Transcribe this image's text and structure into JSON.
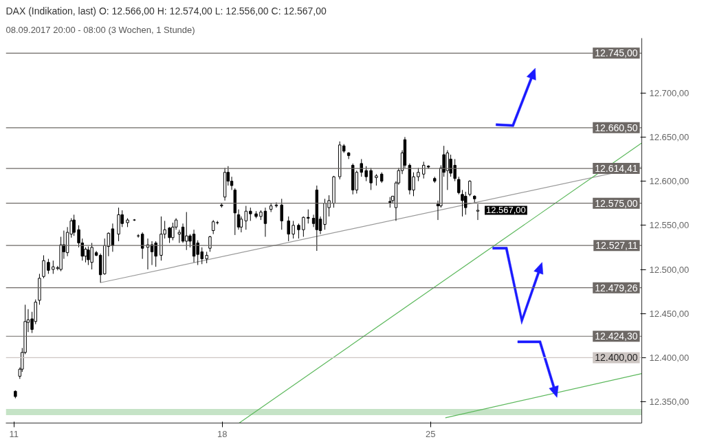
{
  "chart_data": {
    "type": "candlestick",
    "title": "DAX (Indikation, last)  O: 12.566,00  H: 12.574,00  L: 12.556,00  C: 12.567,00",
    "subtitle": "08.09.2017 20:00 - 08:00   (3 Wochen, 1 Stunde)",
    "x": [
      11.05,
      11.2,
      11.28,
      11.38,
      11.48,
      11.61,
      11.73,
      11.86,
      12.0,
      12.16,
      12.32,
      12.47,
      12.58,
      12.68,
      12.8,
      12.93,
      13.02,
      13.18,
      13.3,
      13.41,
      13.5,
      13.62,
      13.77,
      13.91,
      14.05,
      14.18,
      14.32,
      14.52,
      14.64,
      14.82,
      15.05,
      15.18,
      15.32,
      15.5,
      15.64,
      15.77,
      15.95,
      16.07,
      16.23,
      16.34,
      16.45,
      16.56,
      16.68,
      16.8,
      16.92,
      17.05,
      17.18,
      17.32,
      17.48,
      17.59,
      17.7,
      17.84,
      17.98,
      18.09,
      18.2,
      18.32,
      18.43,
      18.55,
      18.64,
      18.8,
      18.95,
      19.14,
      19.3,
      19.45,
      19.64,
      19.82,
      20.0,
      20.23,
      20.39,
      20.57,
      20.73,
      20.89,
      21.07,
      21.18,
      21.3,
      21.45,
      21.59,
      21.75,
      21.95,
      22.09,
      22.25,
      22.39,
      22.52,
      22.68,
      22.84,
      23.0,
      23.18,
      23.36,
      23.64,
      23.73,
      23.84,
      23.93,
      24.05,
      24.14,
      24.3,
      24.43,
      24.59,
      24.77,
      24.93,
      25.14,
      25.25,
      25.35,
      25.45,
      25.57,
      25.68,
      25.82,
      25.95,
      26.07,
      26.18,
      26.32,
      26.48,
      26.59
    ],
    "ohlc": [
      [
        12362,
        12363,
        12354,
        12356
      ],
      [
        12379,
        12389,
        12376,
        12387
      ],
      [
        12387,
        12411,
        12384,
        12406
      ],
      [
        12406,
        12460,
        12404,
        12441
      ],
      [
        12440,
        12455,
        12429,
        12443
      ],
      [
        12444,
        12452,
        12428,
        12432
      ],
      [
        12441,
        12466,
        12438,
        12463
      ],
      [
        12465,
        12495,
        12460,
        12490
      ],
      [
        12492,
        12516,
        12490,
        12510
      ],
      [
        12508,
        12512,
        12495,
        12499
      ],
      [
        12500,
        12510,
        12495,
        12503
      ],
      [
        12501,
        12504,
        12499,
        12502
      ],
      [
        12500,
        12537,
        12498,
        12528
      ],
      [
        12528,
        12544,
        12512,
        12520
      ],
      [
        12519,
        12548,
        12515,
        12542
      ],
      [
        12540,
        12558,
        12536,
        12555
      ],
      [
        12556,
        12562,
        12538,
        12542
      ],
      [
        12545,
        12550,
        12525,
        12530
      ],
      [
        12530,
        12535,
        12510,
        12515
      ],
      [
        12515,
        12525,
        12508,
        12523
      ],
      [
        12522,
        12526,
        12505,
        12511
      ],
      [
        12508,
        12530,
        12500,
        12525
      ],
      [
        12519,
        12521,
        12515,
        12516
      ],
      [
        12516,
        12518,
        12485,
        12494
      ],
      [
        12495,
        12535,
        12494,
        12527
      ],
      [
        12526,
        12542,
        12515,
        12541
      ],
      [
        12546,
        12552,
        12520,
        12527
      ],
      [
        12540,
        12570,
        12532,
        12562
      ],
      [
        12562,
        12567,
        12548,
        12552
      ],
      [
        12553,
        12558,
        12548,
        12556
      ],
      [
        12556,
        12557,
        12555,
        12556
      ],
      [
        12538,
        12540,
        12536,
        12538
      ],
      [
        12540,
        12542,
        12512,
        12524
      ],
      [
        12525,
        12535,
        12500,
        12528
      ],
      [
        12528,
        12532,
        12505,
        12520
      ],
      [
        12530,
        12532,
        12503,
        12515
      ],
      [
        12516,
        12560,
        12510,
        12540
      ],
      [
        12540,
        12555,
        12535,
        12545
      ],
      [
        12547,
        12548,
        12530,
        12536
      ],
      [
        12536,
        12553,
        12533,
        12548
      ],
      [
        12548,
        12558,
        12545,
        12556
      ],
      [
        12540,
        12545,
        12530,
        12542
      ],
      [
        12548,
        12552,
        12530,
        12532
      ],
      [
        12532,
        12565,
        12522,
        12538
      ],
      [
        12538,
        12540,
        12525,
        12532
      ],
      [
        12540,
        12545,
        12508,
        12515
      ],
      [
        12530,
        12533,
        12505,
        12517
      ],
      [
        12520,
        12525,
        12506,
        12512
      ],
      [
        12512,
        12520,
        12507,
        12516
      ],
      [
        12524,
        12538,
        12520,
        12537
      ],
      [
        12544,
        12556,
        12540,
        12554
      ],
      [
        12553,
        12555,
        12551,
        12553
      ],
      [
        12572,
        12575,
        12570,
        12573
      ],
      [
        12582,
        12615,
        12578,
        12610
      ],
      [
        12610,
        12617,
        12595,
        12600
      ],
      [
        12600,
        12605,
        12590,
        12595
      ],
      [
        12590,
        12592,
        12539,
        12564
      ],
      [
        12562,
        12568,
        12545,
        12548
      ],
      [
        12548,
        12560,
        12542,
        12557
      ],
      [
        12555,
        12572,
        12545,
        12566
      ],
      [
        12566,
        12570,
        12555,
        12563
      ],
      [
        12563,
        12566,
        12558,
        12560
      ],
      [
        12560,
        12567,
        12556,
        12565
      ],
      [
        12566,
        12570,
        12537,
        12552
      ],
      [
        12568,
        12575,
        12565,
        12572
      ],
      [
        12572,
        12576,
        12570,
        12573
      ],
      [
        12573,
        12580,
        12545,
        12555
      ],
      [
        12555,
        12560,
        12532,
        12540
      ],
      [
        12540,
        12555,
        12535,
        12550
      ],
      [
        12550,
        12552,
        12535,
        12545
      ],
      [
        12545,
        12560,
        12537,
        12559
      ],
      [
        12559,
        12568,
        12552,
        12558
      ],
      [
        12558,
        12562,
        12548,
        12552
      ],
      [
        12590,
        12595,
        12521,
        12545
      ],
      [
        12557,
        12560,
        12540,
        12544
      ],
      [
        12551,
        12580,
        12545,
        12575
      ],
      [
        12570,
        12584,
        12560,
        12578
      ],
      [
        12575,
        12606,
        12570,
        12605
      ],
      [
        12605,
        12645,
        12602,
        12641
      ],
      [
        12640,
        12642,
        12632,
        12634
      ],
      [
        12632,
        12633,
        12625,
        12629
      ],
      [
        12618,
        12620,
        12585,
        12590
      ],
      [
        12590,
        12612,
        12586,
        12610
      ],
      [
        12620,
        12625,
        12605,
        12610
      ],
      [
        12612,
        12617,
        12600,
        12605
      ],
      [
        12612,
        12615,
        12590,
        12598
      ],
      [
        12604,
        12608,
        12595,
        12606
      ],
      [
        12608,
        12610,
        12598,
        12600
      ],
      [
        12577,
        12582,
        12570,
        12576
      ],
      [
        12578,
        12583,
        12575,
        12583
      ],
      [
        12570,
        12600,
        12555,
        12598
      ],
      [
        12598,
        12615,
        12596,
        12612
      ],
      [
        12612,
        12635,
        12608,
        12632
      ],
      [
        12647,
        12650,
        12615,
        12618
      ],
      [
        12618,
        12620,
        12585,
        12590
      ],
      [
        12590,
        12610,
        12583,
        12605
      ],
      [
        12605,
        12615,
        12600,
        12610
      ],
      [
        12608,
        12622,
        12603,
        12618
      ],
      [
        12617,
        12618,
        12614,
        12616
      ],
      [
        12603,
        12605,
        12598,
        12600
      ],
      [
        12574,
        12578,
        12556,
        12572
      ],
      [
        12572,
        12618,
        12570,
        12615
      ],
      [
        12630,
        12640,
        12605,
        12610
      ],
      [
        12612,
        12635,
        12590,
        12632
      ],
      [
        12625,
        12630,
        12605,
        12609
      ],
      [
        12618,
        12625,
        12600,
        12603
      ],
      [
        12602,
        12605,
        12585,
        12587
      ],
      [
        12585,
        12590,
        12560,
        12578
      ],
      [
        12583,
        12588,
        12562,
        12570
      ],
      [
        12585,
        12601,
        12583,
        12600
      ],
      [
        12583,
        12584,
        12576,
        12580
      ],
      [
        12566,
        12574,
        12556,
        12567
      ]
    ],
    "xlim": [
      10.73,
      32.1
    ],
    "ylim": [
      12326,
      12762
    ],
    "xticks": [
      11,
      18,
      25
    ],
    "yticks": [
      {
        "value": 12350,
        "label": "12.350,00"
      },
      {
        "value": 12400,
        "label": "12.400,00"
      },
      {
        "value": 12450,
        "label": "12.450,00"
      },
      {
        "value": 12500,
        "label": "12.500,00"
      },
      {
        "value": 12550,
        "label": "12.550,00"
      },
      {
        "value": 12600,
        "label": "12.600,00"
      },
      {
        "value": 12650,
        "label": "12.650,00"
      },
      {
        "value": 12700,
        "label": "12.700,00"
      }
    ],
    "ref_lines": [
      {
        "axis": "y",
        "value": 12745,
        "label": "12.745,00",
        "color": "#6d6865"
      },
      {
        "axis": "y",
        "value": 12660.5,
        "label": "12.660,50",
        "color": "#6d6865"
      },
      {
        "axis": "y",
        "value": 12614.41,
        "label": "12.614,41",
        "color": "#6d6865"
      },
      {
        "axis": "y",
        "value": 12575,
        "label": "12.575,00",
        "color": "#6d6865"
      },
      {
        "axis": "y",
        "value": 12527.11,
        "label": "12.527,11",
        "color": "#6d6865"
      },
      {
        "axis": "y",
        "value": 12479.26,
        "label": "12.479,26",
        "color": "#6d6865"
      },
      {
        "axis": "y",
        "value": 12424.3,
        "label": "12.424,30",
        "color": "#6d6865"
      },
      {
        "axis": "y",
        "value": 12400,
        "label": "12.400,00",
        "color": "#cdc6c3"
      }
    ],
    "bands": [
      {
        "axis": "y",
        "from": 12335,
        "to": 12342,
        "color": "#c5e3c6"
      }
    ],
    "series": [
      {
        "type": "line",
        "x": [
          13.91,
          32.09
        ],
        "values": [
          12485,
          12616
        ],
        "color": "#999999"
      },
      {
        "type": "line",
        "x": [
          18.57,
          32.09
        ],
        "values": [
          12326,
          12643
        ],
        "color": "#5cb85c"
      },
      {
        "type": "line",
        "x": [
          25.5,
          32.09
        ],
        "values": [
          12332,
          12382
        ],
        "color": "#5cb85c"
      }
    ],
    "annotations": [
      {
        "text": "12.567,00",
        "x": 26.59,
        "y": 12567
      }
    ],
    "grid": false
  }
}
